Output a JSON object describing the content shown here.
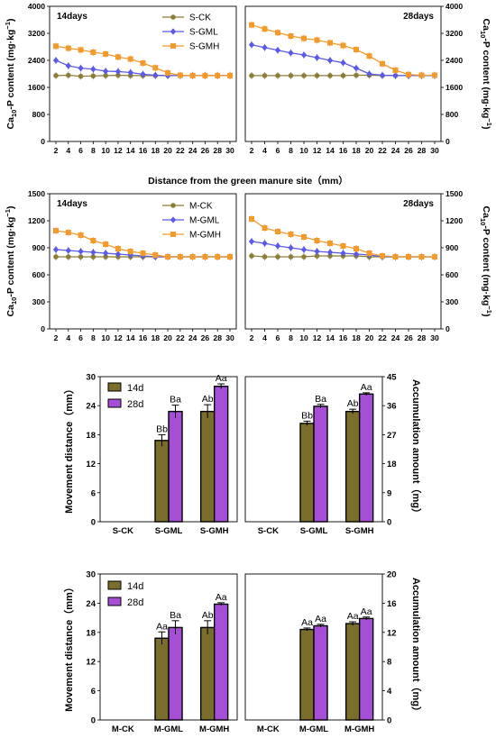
{
  "common": {
    "distance_xlabel": "Distance from the green manure site（mm）",
    "ca10p_ylabel_main": "Ca",
    "ca10p_ylabel_sub": "10",
    "ca10p_ylabel_rest": "-P content (mg·kg",
    "ca10p_ylabel_sup": "−1",
    "ca10p_ylabel_end": ")",
    "movement_ylabel": "Movement distance（mm）",
    "accum_ylabel": "Accumulation amount（mg）",
    "colors": {
      "CK": "#8c7d38",
      "GML": "#5a5ae6",
      "GMH": "#f39a2c",
      "bar14": "#7b6e2c",
      "bar28": "#a64fd6",
      "axis": "#000000"
    }
  },
  "chart_data": [
    {
      "type": "line",
      "panel_label": "14days",
      "x": [
        2,
        4,
        6,
        8,
        10,
        12,
        14,
        16,
        18,
        20,
        22,
        24,
        26,
        28,
        30
      ],
      "ylim": [
        0,
        4000
      ],
      "yticks": [
        0,
        800,
        1600,
        2400,
        3200,
        4000
      ],
      "series": [
        {
          "name": "S-CK",
          "values": [
            1950,
            1960,
            1930,
            1940,
            1950,
            1960,
            1950,
            1950,
            1950,
            1950,
            1950,
            1950,
            1950,
            1950,
            1950
          ]
        },
        {
          "name": "S-GML",
          "values": [
            2400,
            2240,
            2170,
            2140,
            2080,
            2070,
            2040,
            1990,
            1960,
            1950,
            1950,
            1950,
            1950,
            1950,
            1950
          ]
        },
        {
          "name": "S-GMH",
          "values": [
            2820,
            2760,
            2710,
            2640,
            2590,
            2500,
            2440,
            2320,
            2180,
            2030,
            1960,
            1950,
            1950,
            1950,
            1950
          ]
        }
      ]
    },
    {
      "type": "line",
      "panel_label": "28days",
      "x": [
        2,
        4,
        6,
        8,
        10,
        12,
        14,
        16,
        18,
        20,
        22,
        24,
        26,
        28,
        30
      ],
      "ylim": [
        0,
        4000
      ],
      "yticks": [
        0,
        800,
        1600,
        2400,
        3200,
        4000
      ],
      "series": [
        {
          "name": "S-CK",
          "values": [
            1950,
            1950,
            1950,
            1950,
            1950,
            1950,
            1950,
            1950,
            1960,
            1960,
            1950,
            1950,
            1950,
            1950,
            1950
          ]
        },
        {
          "name": "S-GML",
          "values": [
            2860,
            2780,
            2700,
            2620,
            2560,
            2480,
            2400,
            2330,
            2170,
            2000,
            1960,
            1950,
            1950,
            1950,
            1950
          ]
        },
        {
          "name": "S-GMH",
          "values": [
            3450,
            3330,
            3220,
            3120,
            3050,
            3000,
            2920,
            2840,
            2720,
            2530,
            2300,
            2110,
            1980,
            1960,
            1960
          ]
        }
      ]
    },
    {
      "type": "line",
      "panel_label": "14days",
      "x": [
        2,
        4,
        6,
        8,
        10,
        12,
        14,
        16,
        18,
        20,
        22,
        24,
        26,
        28,
        30
      ],
      "ylim": [
        0,
        1500
      ],
      "yticks": [
        0,
        300,
        600,
        900,
        1200,
        1500
      ],
      "series": [
        {
          "name": "M-CK",
          "values": [
            800,
            800,
            800,
            800,
            800,
            800,
            800,
            800,
            800,
            800,
            800,
            800,
            800,
            800,
            800
          ]
        },
        {
          "name": "M-GML",
          "values": [
            880,
            870,
            860,
            850,
            840,
            830,
            820,
            810,
            800,
            800,
            800,
            800,
            800,
            800,
            800
          ]
        },
        {
          "name": "M-GMH",
          "values": [
            1090,
            1070,
            1040,
            980,
            940,
            890,
            860,
            840,
            820,
            800,
            800,
            800,
            800,
            800,
            800
          ]
        }
      ]
    },
    {
      "type": "line",
      "panel_label": "28days",
      "x": [
        2,
        4,
        6,
        8,
        10,
        12,
        14,
        16,
        18,
        20,
        22,
        24,
        26,
        28,
        30
      ],
      "ylim": [
        0,
        1500
      ],
      "yticks": [
        0,
        300,
        600,
        900,
        1200,
        1500
      ],
      "series": [
        {
          "name": "M-CK",
          "values": [
            810,
            800,
            800,
            800,
            800,
            810,
            810,
            810,
            810,
            800,
            800,
            800,
            800,
            800,
            800
          ]
        },
        {
          "name": "M-GML",
          "values": [
            970,
            950,
            920,
            900,
            880,
            860,
            850,
            840,
            830,
            820,
            800,
            800,
            800,
            800,
            800
          ]
        },
        {
          "name": "M-GMH",
          "values": [
            1220,
            1120,
            1080,
            1050,
            1020,
            980,
            950,
            920,
            890,
            840,
            810,
            800,
            800,
            800,
            800
          ]
        }
      ]
    },
    {
      "type": "bar",
      "categories": [
        "S-CK",
        "S-GML",
        "S-GMH"
      ],
      "ylim": [
        0,
        30
      ],
      "yticks": [
        0,
        6,
        12,
        18,
        24,
        30
      ],
      "series": [
        {
          "name": "14d",
          "values": [
            0,
            16.8,
            22.8
          ],
          "errors": [
            0,
            1.2,
            1.4
          ],
          "labels": [
            "",
            "Bb",
            "Ab"
          ]
        },
        {
          "name": "28d",
          "values": [
            0,
            22.8,
            28
          ],
          "errors": [
            0,
            1.3,
            0.5
          ],
          "labels": [
            "",
            "Ba",
            "Aa"
          ]
        }
      ]
    },
    {
      "type": "bar",
      "categories": [
        "S-CK",
        "S-GML",
        "S-GMH"
      ],
      "ylim": [
        0,
        45
      ],
      "yticks": [
        0,
        9,
        18,
        27,
        36,
        45
      ],
      "series": [
        {
          "name": "14d",
          "values": [
            0,
            30.5,
            34.2
          ],
          "errors": [
            0,
            0.7,
            0.7
          ],
          "labels": [
            "",
            "Bb",
            "Ab"
          ]
        },
        {
          "name": "28d",
          "values": [
            0,
            35.8,
            39.6
          ],
          "errors": [
            0,
            0.6,
            0.4
          ],
          "labels": [
            "",
            "Ba",
            "Aa"
          ]
        }
      ]
    },
    {
      "type": "bar",
      "categories": [
        "M-CK",
        "M-GML",
        "M-GMH"
      ],
      "ylim": [
        0,
        30
      ],
      "yticks": [
        0,
        6,
        12,
        18,
        24,
        30
      ],
      "series": [
        {
          "name": "14d",
          "values": [
            0,
            16.8,
            19
          ],
          "errors": [
            0,
            1.3,
            1.4
          ],
          "labels": [
            "",
            "Aa",
            "Ab"
          ]
        },
        {
          "name": "28d",
          "values": [
            0,
            19,
            23.8
          ],
          "errors": [
            0,
            1.4,
            0.3
          ],
          "labels": [
            "",
            "Ba",
            "Aa"
          ]
        }
      ]
    },
    {
      "type": "bar",
      "categories": [
        "M-CK",
        "M-GML",
        "M-GMH"
      ],
      "ylim": [
        0,
        20
      ],
      "yticks": [
        0,
        4,
        8,
        12,
        16,
        20
      ],
      "series": [
        {
          "name": "14d",
          "values": [
            0,
            12.4,
            13.2
          ],
          "errors": [
            0,
            0.2,
            0.25
          ],
          "labels": [
            "",
            "Aa",
            "Aa"
          ]
        },
        {
          "name": "28d",
          "values": [
            0,
            12.9,
            13.9
          ],
          "errors": [
            0,
            0.2,
            0.2
          ],
          "labels": [
            "",
            "Aa",
            "Aa"
          ]
        }
      ]
    }
  ]
}
